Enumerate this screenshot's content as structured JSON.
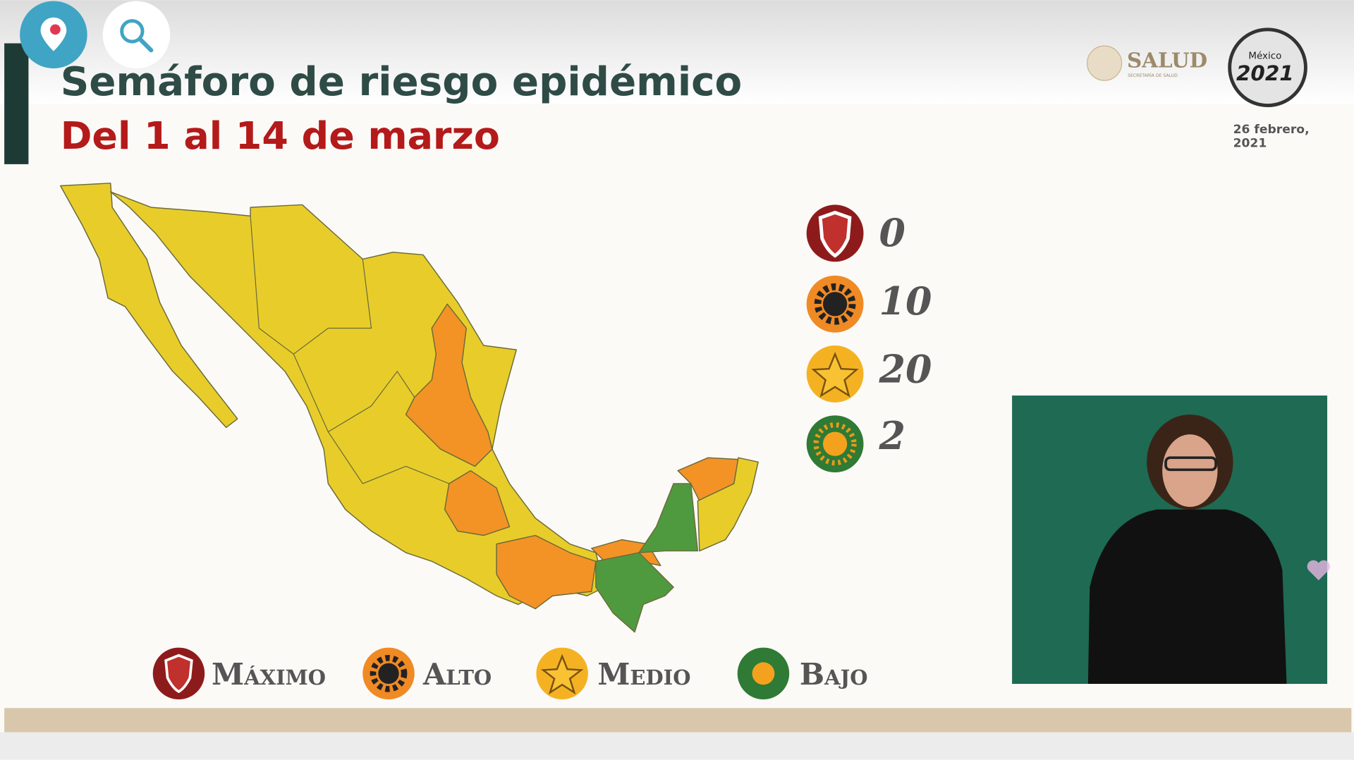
{
  "header": {
    "title": "Semáforo de riesgo epidémico",
    "subtitle": "Del 1 al 14 de marzo",
    "logo": "SALUD",
    "logo_subtitle": "SECRETARÍA DE SALUD",
    "emblem_top": "México",
    "emblem_year": "2021",
    "date": "26 febrero, 2021"
  },
  "levels": [
    {
      "name": "Máximo",
      "count": "0"
    },
    {
      "name": "Alto",
      "count": "10"
    },
    {
      "name": "Medio",
      "count": "20"
    },
    {
      "name": "Bajo",
      "count": "2"
    }
  ]
}
